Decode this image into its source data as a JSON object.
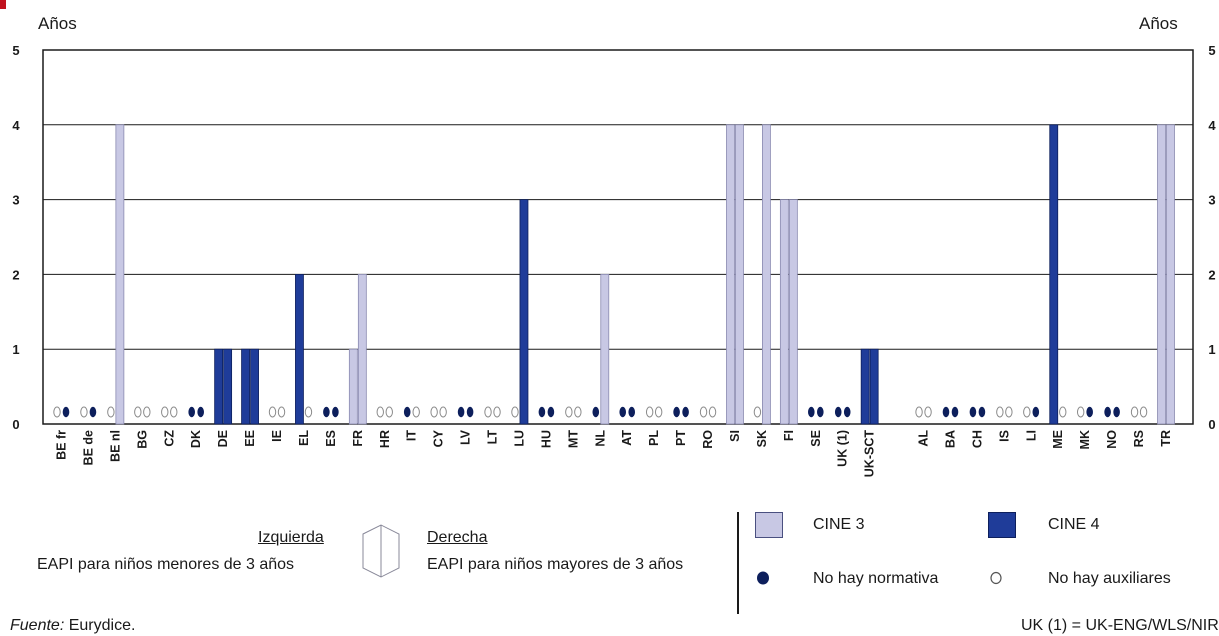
{
  "chart_data": {
    "type": "bar",
    "unit_left": "Años",
    "unit_right": "Años",
    "ylim": [
      0,
      5
    ],
    "yticks": [
      "0",
      "1",
      "2",
      "3",
      "4",
      "5"
    ],
    "grid": true,
    "colors": {
      "cine3": "#c8c8e4",
      "cine4": "#1f3c99",
      "no_normativa": "#0d1f5c",
      "no_auxiliares": "#ffffff"
    },
    "series": [
      {
        "name": "CINE 3"
      },
      {
        "name": "CINE 4"
      }
    ],
    "countries": [
      {
        "label": "BE fr",
        "left": "none",
        "right": "nonorm"
      },
      {
        "label": "BE de",
        "left": "none",
        "right": "nonorm"
      },
      {
        "label": "BE nl",
        "left": "none",
        "right": {
          "level": "cine3",
          "value": 4
        }
      },
      {
        "label": "BG",
        "left": "none",
        "right": "none"
      },
      {
        "label": "CZ",
        "left": "none",
        "right": "none"
      },
      {
        "label": "DK",
        "left": "nonorm",
        "right": "nonorm"
      },
      {
        "label": "DE",
        "left": {
          "level": "cine4",
          "value": 1
        },
        "right": {
          "level": "cine4",
          "value": 1
        }
      },
      {
        "label": "EE",
        "left": {
          "level": "cine4",
          "value": 1
        },
        "right": {
          "level": "cine4",
          "value": 1
        }
      },
      {
        "label": "IE",
        "left": "none",
        "right": "none"
      },
      {
        "label": "EL",
        "left": {
          "level": "cine4",
          "value": 2
        },
        "right": "none"
      },
      {
        "label": "ES",
        "left": "nonorm",
        "right": "nonorm"
      },
      {
        "label": "FR",
        "left": {
          "level": "cine3",
          "value": 1
        },
        "right": {
          "level": "cine3",
          "value": 2
        }
      },
      {
        "label": "HR",
        "left": "none",
        "right": "none"
      },
      {
        "label": "IT",
        "left": "nonorm",
        "right": "none"
      },
      {
        "label": "CY",
        "left": "none",
        "right": "none"
      },
      {
        "label": "LV",
        "left": "nonorm",
        "right": "nonorm"
      },
      {
        "label": "LT",
        "left": "none",
        "right": "none"
      },
      {
        "label": "LU",
        "left": "none",
        "right": {
          "level": "cine4",
          "value": 3
        }
      },
      {
        "label": "HU",
        "left": "nonorm",
        "right": "nonorm"
      },
      {
        "label": "MT",
        "left": "none",
        "right": "none"
      },
      {
        "label": "NL",
        "left": "nonorm",
        "right": {
          "level": "cine3",
          "value": 2
        }
      },
      {
        "label": "AT",
        "left": "nonorm",
        "right": "nonorm"
      },
      {
        "label": "PL",
        "left": "none",
        "right": "none"
      },
      {
        "label": "PT",
        "left": "nonorm",
        "right": "nonorm"
      },
      {
        "label": "RO",
        "left": "none",
        "right": "none"
      },
      {
        "label": "SI",
        "left": {
          "level": "cine3",
          "value": 4
        },
        "right": {
          "level": "cine3",
          "value": 4
        }
      },
      {
        "label": "SK",
        "left": "none",
        "right": {
          "level": "cine3",
          "value": 4
        }
      },
      {
        "label": "FI",
        "left": {
          "level": "cine3",
          "value": 3
        },
        "right": {
          "level": "cine3",
          "value": 3
        }
      },
      {
        "label": "SE",
        "left": "nonorm",
        "right": "nonorm"
      },
      {
        "label": "UK (1)",
        "left": "nonorm",
        "right": "nonorm"
      },
      {
        "label": "UK-SCT",
        "left": {
          "level": "cine4",
          "value": 1
        },
        "right": {
          "level": "cine4",
          "value": 1
        }
      },
      {
        "label": "",
        "gap": true
      },
      {
        "label": "AL",
        "left": "none",
        "right": "none"
      },
      {
        "label": "BA",
        "left": "nonorm",
        "right": "nonorm"
      },
      {
        "label": "CH",
        "left": "nonorm",
        "right": "nonorm"
      },
      {
        "label": "IS",
        "left": "none",
        "right": "none"
      },
      {
        "label": "LI",
        "left": "none",
        "right": "nonorm"
      },
      {
        "label": "ME",
        "left": {
          "level": "cine4",
          "value": 4
        },
        "right": "none"
      },
      {
        "label": "MK",
        "left": "none",
        "right": "nonorm"
      },
      {
        "label": "NO",
        "left": "nonorm",
        "right": "nonorm"
      },
      {
        "label": "RS",
        "left": "none",
        "right": "none"
      },
      {
        "label": "TR",
        "left": {
          "level": "cine3",
          "value": 4
        },
        "right": {
          "level": "cine3",
          "value": 4
        }
      }
    ]
  },
  "legend": {
    "left_title": "Izquierda",
    "left_desc": "EAPI para niños menores de 3 años",
    "right_title": "Derecha",
    "right_desc": "EAPI para niños mayores de 3 años",
    "cine3_label": "CINE 3",
    "cine4_label": "CINE 4",
    "no_normativa_label": "No hay normativa",
    "no_auxiliares_label": "No hay auxiliares"
  },
  "footer": {
    "source_label": "Fuente:",
    "source_value": "Eurydice.",
    "note": "UK (1) = UK-ENG/WLS/NIR"
  }
}
